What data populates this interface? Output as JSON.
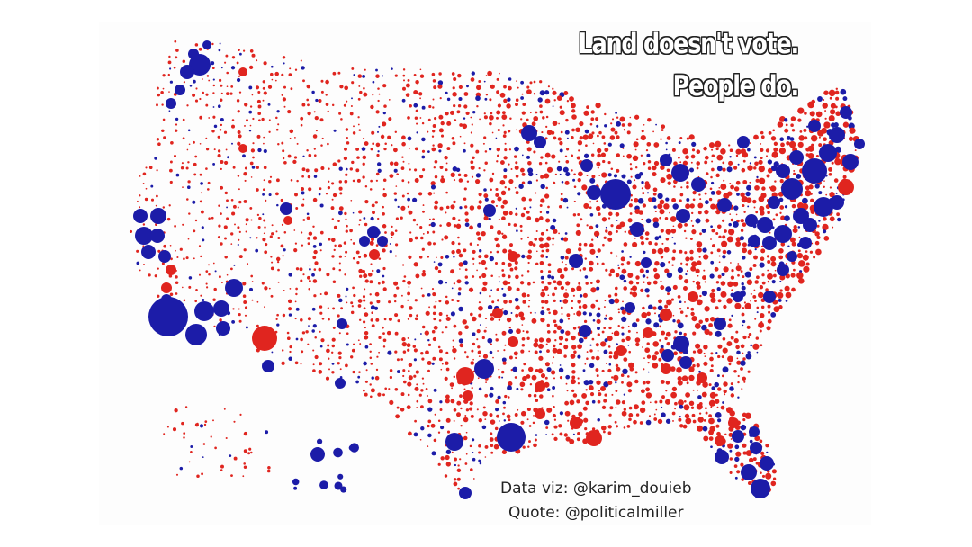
{
  "title": {
    "line1": "Land doesn't vote.",
    "line2": "People do."
  },
  "credits": {
    "viz": "Data viz: @karim_douieb",
    "quote": "Quote: @politicalmiller"
  },
  "colors": {
    "democrat": "#1c1ca8",
    "republican": "#e0251f",
    "background": "#ffffff",
    "panel": "#fdfdfd"
  }
}
